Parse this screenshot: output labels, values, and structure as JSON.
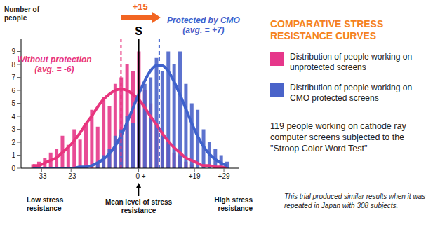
{
  "chart_data": {
    "type": "bar",
    "title": "COMPARATIVE STRESS RESISTANCE CURVES",
    "y_label": "Number of people",
    "x": [
      -36,
      -34,
      -32,
      -30,
      -28,
      -26,
      -24,
      -22,
      -20,
      -18,
      -16,
      -14,
      -12,
      -10,
      -8,
      -6,
      -4,
      -2,
      0,
      2,
      4,
      6,
      8,
      10,
      12,
      14,
      16,
      18,
      20,
      22,
      24,
      26,
      28,
      30
    ],
    "series": [
      {
        "name": "Distribution of people working on unprotected screens",
        "type": "bar",
        "color": "#e6378a",
        "values": [
          0.3,
          0.5,
          0.8,
          1.2,
          1.5,
          2.5,
          1.8,
          3.0,
          2.2,
          3.5,
          4.5,
          3.2,
          5.5,
          4.8,
          6.5,
          7.0,
          8.0,
          7.5,
          9.0,
          6.0,
          5.0,
          3.5,
          2.5,
          2.0,
          1.2,
          1.0,
          0.5,
          0.3,
          0,
          0,
          0,
          0,
          0,
          0
        ]
      },
      {
        "name": "Distribution of people working on CMO protected screens",
        "type": "bar",
        "color": "#4a63c9",
        "values": [
          0,
          0,
          0,
          0,
          0,
          0,
          0,
          0,
          0,
          0,
          0,
          0.5,
          1.0,
          1.5,
          2.5,
          3.0,
          4.0,
          3.5,
          5.0,
          6.5,
          7.0,
          8.5,
          7.5,
          9.0,
          8.0,
          9.0,
          6.5,
          5.0,
          4.5,
          3.0,
          2.0,
          1.5,
          1.0,
          0.5
        ]
      },
      {
        "name": "Without protection",
        "type": "line",
        "color": "#e8357e",
        "mean": -6,
        "mean_label": "(avg. = -6)",
        "values": [
          0.2,
          0.2,
          0.4,
          0.6,
          0.8,
          1.2,
          1.6,
          2.1,
          2.7,
          3.4,
          4.0,
          4.7,
          5.3,
          5.7,
          6.0,
          6.1,
          6.0,
          5.7,
          5.3,
          4.7,
          4.0,
          3.4,
          2.7,
          2.1,
          1.6,
          1.2,
          0.8,
          0.6,
          0.4,
          0.2,
          0.2,
          0.1,
          0.1,
          0.0
        ]
      },
      {
        "name": "Protected by CMO",
        "type": "line",
        "color": "#3f62cc",
        "mean": 7,
        "mean_label": "(avg. = +7)",
        "values": [
          0,
          0,
          0,
          0,
          0,
          0,
          0.0,
          0.0,
          0.1,
          0.1,
          0.2,
          0.4,
          0.7,
          1.1,
          1.7,
          2.5,
          3.5,
          4.6,
          5.7,
          6.7,
          7.5,
          7.9,
          7.9,
          7.5,
          6.7,
          5.7,
          4.6,
          3.5,
          2.5,
          1.7,
          1.1,
          0.7,
          0.4,
          0.2
        ]
      }
    ],
    "xlim": [
      -40,
      34
    ],
    "xticks": [
      -33,
      -23,
      {
        "value": 0,
        "label": "- 0 +"
      },
      {
        "value": 19,
        "label": "+19"
      },
      {
        "value": 29,
        "label": "+29"
      }
    ],
    "ylim": [
      0,
      10
    ],
    "yticks": [
      0,
      1,
      2,
      3,
      4,
      5,
      6,
      7,
      8,
      9
    ],
    "grid": false,
    "legend": "right",
    "reference": {
      "x": 0,
      "label": "S"
    },
    "shift_label": "+15",
    "axis_notes": {
      "low": "Low stress resistance",
      "mean": "Mean level of stress resistance",
      "high": "High stress resistance"
    },
    "description": "119 people working on cathode ray computer screens subjected to the \"Stroop Color Word Test\"",
    "note": "This trial produced similar results when it was repeated in Japan with 308 subjects."
  }
}
